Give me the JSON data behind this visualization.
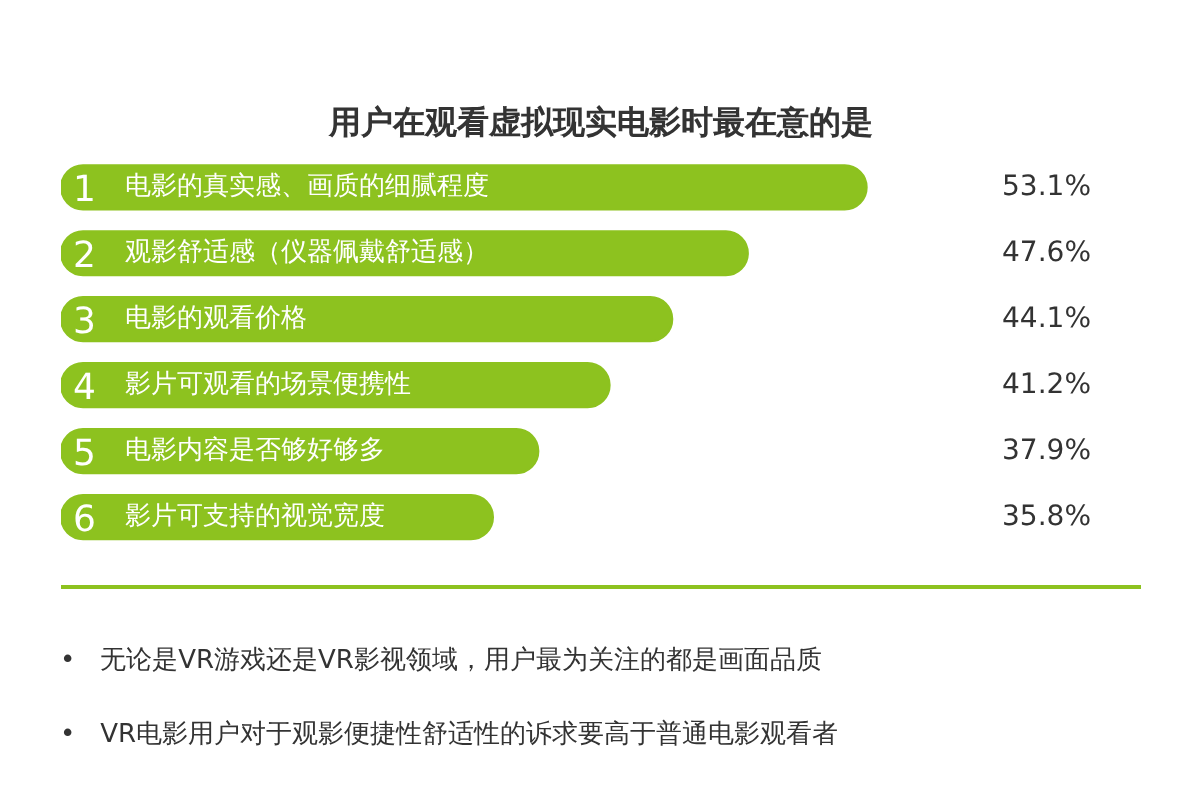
{
  "chart_data": {
    "type": "bar",
    "orientation": "horizontal",
    "title": "用户在观看虚拟现实电影时最在意的是",
    "categories": [
      "1 电影的真实感、画质的细腻程度",
      "2 观影舒适感（仪器佩戴舒适感）",
      "3 电影的观看价格",
      "4 影片可观看的场景便携性",
      "5 电影内容是否够好够多",
      "6 影片可支持的视觉宽度"
    ],
    "values": [
      53.1,
      47.6,
      44.1,
      41.2,
      37.9,
      35.8
    ],
    "value_labels": [
      "53.1%",
      "47.6%",
      "44.1%",
      "41.2%",
      "37.9%",
      "35.8%"
    ],
    "color": "#8dc21f",
    "xlim": [
      15.8,
      65.8
    ],
    "tick_labels": false,
    "grid": false,
    "annotations": [
      "•   无论是VR游戏还是VR影视领域，用户最为关注的都是画面品质",
      "•   VR电影用户对于观影便捷性舒适性的诉求要高于普通电影观看者"
    ]
  }
}
